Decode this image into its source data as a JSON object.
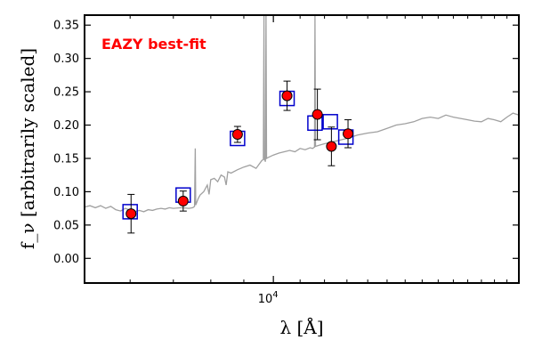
{
  "chart_data": {
    "type": "scatter",
    "title": "",
    "xlabel": "λ [Å]",
    "ylabel": "f_ν [arbitrarily scaled]",
    "x_scale": "log",
    "xlim": [
      5100,
      24000
    ],
    "ylim": [
      -0.037,
      0.365
    ],
    "x_tick_labels": [
      {
        "value": 10000,
        "label": "10^4"
      }
    ],
    "y_ticks": [
      0.0,
      0.05,
      0.1,
      0.15,
      0.2,
      0.25,
      0.3,
      0.35
    ],
    "y_tick_labels": [
      "0.00",
      "0.05",
      "0.10",
      "0.15",
      "0.20",
      "0.25",
      "0.30",
      "0.35"
    ],
    "grid": false,
    "annotation": {
      "text": "EAZY best-fit",
      "color": "#ff0000",
      "position": "top-left"
    },
    "series": [
      {
        "kind": "line",
        "color": "#a0a0a0",
        "points": [
          [
            5100,
            0.077
          ],
          [
            5200,
            0.079
          ],
          [
            5300,
            0.076
          ],
          [
            5400,
            0.079
          ],
          [
            5500,
            0.075
          ],
          [
            5600,
            0.078
          ],
          [
            5700,
            0.073
          ],
          [
            5800,
            0.071
          ],
          [
            5900,
            0.075
          ],
          [
            6000,
            0.072
          ],
          [
            6100,
            0.07
          ],
          [
            6200,
            0.072
          ],
          [
            6300,
            0.07
          ],
          [
            6400,
            0.073
          ],
          [
            6500,
            0.072
          ],
          [
            6600,
            0.074
          ],
          [
            6700,
            0.075
          ],
          [
            6800,
            0.074
          ],
          [
            6900,
            0.076
          ],
          [
            7000,
            0.075
          ],
          [
            7200,
            0.076
          ],
          [
            7400,
            0.075
          ],
          [
            7500,
            0.076
          ],
          [
            7550,
            0.078
          ],
          [
            7570,
            0.165
          ],
          [
            7580,
            0.08
          ],
          [
            7650,
            0.09
          ],
          [
            7700,
            0.095
          ],
          [
            7800,
            0.1
          ],
          [
            7900,
            0.11
          ],
          [
            7950,
            0.096
          ],
          [
            8000,
            0.118
          ],
          [
            8100,
            0.12
          ],
          [
            8200,
            0.115
          ],
          [
            8300,
            0.125
          ],
          [
            8400,
            0.122
          ],
          [
            8450,
            0.11
          ],
          [
            8500,
            0.13
          ],
          [
            8600,
            0.128
          ],
          [
            8800,
            0.133
          ],
          [
            9000,
            0.137
          ],
          [
            9200,
            0.14
          ],
          [
            9400,
            0.135
          ],
          [
            9600,
            0.147
          ],
          [
            9650,
            0.148
          ],
          [
            9670,
            0.365
          ],
          [
            9680,
            0.15
          ],
          [
            9720,
            0.145
          ],
          [
            9740,
            0.365
          ],
          [
            9760,
            0.15
          ],
          [
            9800,
            0.151
          ],
          [
            9900,
            0.153
          ],
          [
            10000,
            0.155
          ],
          [
            10200,
            0.158
          ],
          [
            10400,
            0.16
          ],
          [
            10600,
            0.162
          ],
          [
            10800,
            0.16
          ],
          [
            11000,
            0.165
          ],
          [
            11200,
            0.163
          ],
          [
            11400,
            0.166
          ],
          [
            11500,
            0.165
          ],
          [
            11580,
            0.167
          ],
          [
            11600,
            0.365
          ],
          [
            11620,
            0.168
          ],
          [
            11800,
            0.17
          ],
          [
            12000,
            0.172
          ],
          [
            12500,
            0.176
          ],
          [
            13000,
            0.18
          ],
          [
            13500,
            0.185
          ],
          [
            14000,
            0.188
          ],
          [
            14500,
            0.19
          ],
          [
            15000,
            0.195
          ],
          [
            15500,
            0.2
          ],
          [
            16000,
            0.202
          ],
          [
            16500,
            0.205
          ],
          [
            17000,
            0.21
          ],
          [
            17500,
            0.212
          ],
          [
            18000,
            0.21
          ],
          [
            18500,
            0.215
          ],
          [
            19000,
            0.212
          ],
          [
            19500,
            0.21
          ],
          [
            20000,
            0.208
          ],
          [
            20500,
            0.206
          ],
          [
            21000,
            0.205
          ],
          [
            21500,
            0.21
          ],
          [
            22000,
            0.208
          ],
          [
            22500,
            0.205
          ],
          [
            23000,
            0.212
          ],
          [
            23500,
            0.218
          ],
          [
            24000,
            0.215
          ]
        ]
      },
      {
        "kind": "model-photometry",
        "marker": "open-square",
        "color": "#0000cc",
        "points": [
          [
            6000,
            0.07
          ],
          [
            7250,
            0.095
          ],
          [
            8800,
            0.18
          ],
          [
            10500,
            0.24
          ],
          [
            11600,
            0.203
          ],
          [
            12250,
            0.205
          ],
          [
            12950,
            0.182
          ]
        ]
      },
      {
        "kind": "observed-photometry",
        "marker": "filled-circle",
        "color": "#ff0000",
        "points": [
          [
            6020,
            0.067
          ],
          [
            7250,
            0.086
          ],
          [
            8800,
            0.186
          ],
          [
            10500,
            0.244
          ],
          [
            11700,
            0.216
          ],
          [
            12300,
            0.168
          ],
          [
            13050,
            0.187
          ]
        ],
        "errors": [
          0.029,
          0.015,
          0.012,
          0.022,
          0.038,
          0.029,
          0.021
        ]
      }
    ]
  }
}
